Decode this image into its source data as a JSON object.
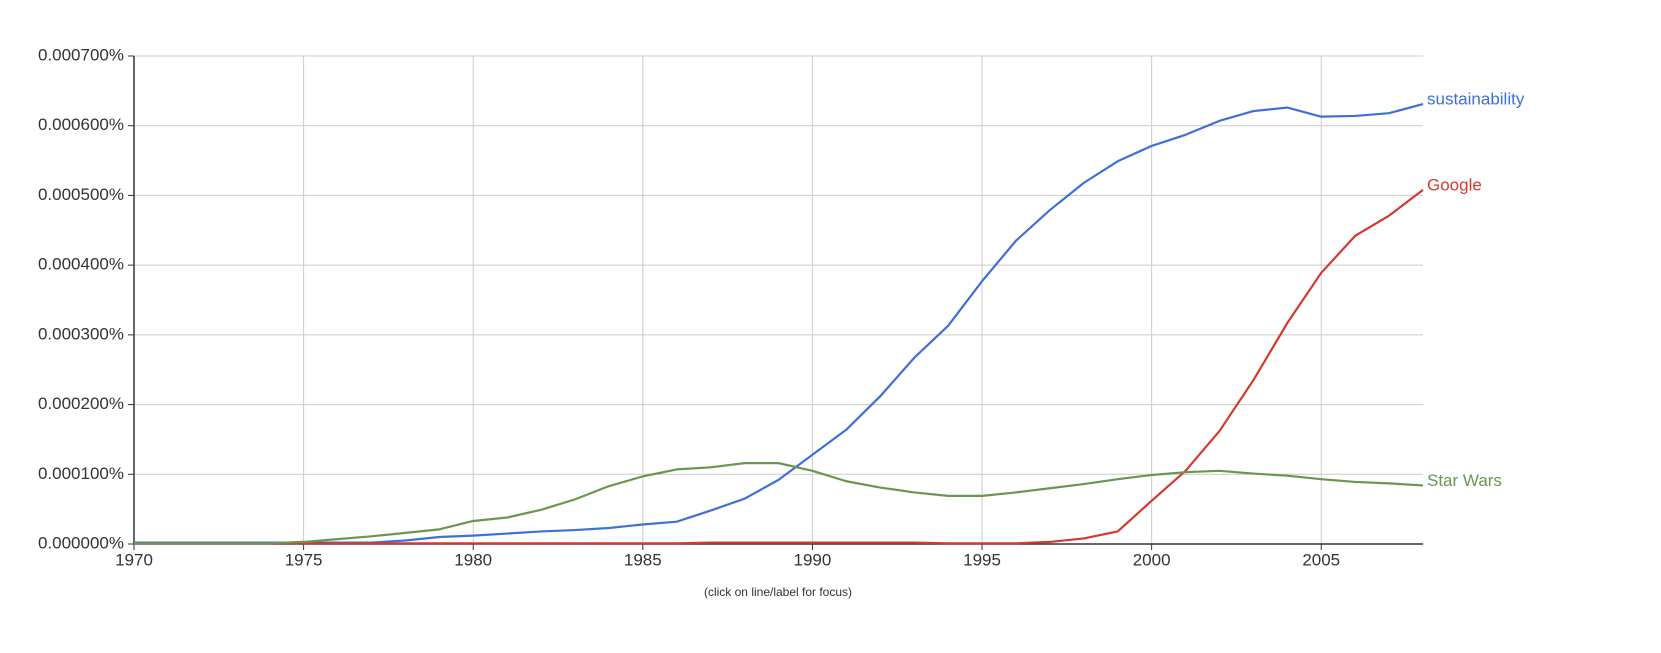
{
  "chart_data": {
    "type": "line",
    "note": "(click on line/label for focus)",
    "x": [
      1970,
      1971,
      1972,
      1973,
      1974,
      1975,
      1976,
      1977,
      1978,
      1979,
      1980,
      1981,
      1982,
      1983,
      1984,
      1985,
      1986,
      1987,
      1988,
      1989,
      1990,
      1991,
      1992,
      1993,
      1994,
      1995,
      1996,
      1997,
      1998,
      1999,
      2000,
      2001,
      2002,
      2003,
      2004,
      2005,
      2006,
      2007,
      2008
    ],
    "xlim": [
      1970,
      2008
    ],
    "xticks": [
      1970,
      1975,
      1980,
      1985,
      1990,
      1995,
      2000,
      2005
    ],
    "ylim": [
      0,
      0.0007
    ],
    "yticks": [
      {
        "value": 0,
        "label": "0.000000%"
      },
      {
        "value": 0.0001,
        "label": "0.000100%"
      },
      {
        "value": 0.0002,
        "label": "0.000200%"
      },
      {
        "value": 0.0003,
        "label": "0.000300%"
      },
      {
        "value": 0.0004,
        "label": "0.000400%"
      },
      {
        "value": 0.0005,
        "label": "0.000500%"
      },
      {
        "value": 0.0006,
        "label": "0.000600%"
      },
      {
        "value": 0.0007,
        "label": "0.000700%"
      }
    ],
    "grid": true,
    "series": [
      {
        "name": "sustainability",
        "color": "#3f6fd8",
        "values": [
          2e-06,
          2e-06,
          2e-06,
          2e-06,
          2e-06,
          2e-06,
          2e-06,
          2e-06,
          5e-06,
          1e-05,
          1.2e-05,
          1.5e-05,
          1.8e-05,
          2e-05,
          2.3e-05,
          2.8e-05,
          3.2e-05,
          4.8e-05,
          6.5e-05,
          9.2e-05,
          0.000128,
          0.000164,
          0.000212,
          0.000267,
          0.000313,
          0.000377,
          0.000435,
          0.000479,
          0.000518,
          0.000549,
          0.000571,
          0.000587,
          0.000607,
          0.000621,
          0.000626,
          0.000613,
          0.000614,
          0.000618,
          0.000631
        ]
      },
      {
        "name": "Google",
        "color": "#d23a2e",
        "values": [
          1e-06,
          1e-06,
          1e-06,
          1e-06,
          1e-06,
          1e-06,
          1e-06,
          1e-06,
          1e-06,
          1e-06,
          1e-06,
          1e-06,
          1e-06,
          1e-06,
          1e-06,
          1e-06,
          1e-06,
          2e-06,
          2e-06,
          2e-06,
          2e-06,
          2e-06,
          2e-06,
          2e-06,
          1e-06,
          1e-06,
          1e-06,
          3e-06,
          8e-06,
          1.8e-05,
          6.2e-05,
          0.000105,
          0.000162,
          0.000235,
          0.000317,
          0.000389,
          0.000442,
          0.000471,
          0.000508
        ]
      },
      {
        "name": "Star Wars",
        "color": "#6a9650",
        "values": [
          1e-06,
          1e-06,
          1e-06,
          1e-06,
          1e-06,
          3e-06,
          7e-06,
          1.1e-05,
          1.6e-05,
          2.1e-05,
          3.3e-05,
          3.8e-05,
          4.9e-05,
          6.4e-05,
          8.3e-05,
          9.7e-05,
          0.000107,
          0.00011,
          0.000116,
          0.000116,
          0.000105,
          9e-05,
          8.1e-05,
          7.4e-05,
          6.9e-05,
          6.9e-05,
          7.4e-05,
          8e-05,
          8.6e-05,
          9.3e-05,
          9.9e-05,
          0.000103,
          0.000105,
          0.000101,
          9.8e-05,
          9.3e-05,
          8.9e-05,
          8.7e-05,
          8.4e-05
        ]
      }
    ]
  }
}
